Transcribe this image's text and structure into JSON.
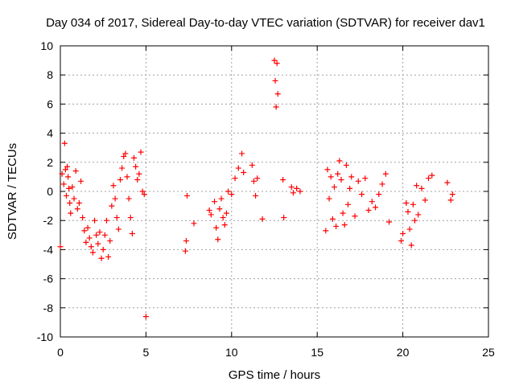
{
  "chart_data": {
    "type": "scatter",
    "title": "Day 034 of 2017, Sidereal Day-to-day VTEC variation (SDTVAR) for receiver dav1",
    "xlabel": "GPS time / hours",
    "ylabel": "SDTVAR / TECUs",
    "xlim": [
      0,
      25
    ],
    "ylim": [
      -10,
      10
    ],
    "xticks": [
      0,
      5,
      10,
      15,
      20,
      25
    ],
    "yticks": [
      -10,
      -8,
      -6,
      -4,
      -2,
      0,
      2,
      4,
      6,
      8,
      10
    ],
    "xtick_labels": [
      "0",
      "5",
      "10",
      "15",
      "20",
      "25"
    ],
    "ytick_labels": [
      "-10",
      "-8",
      "-6",
      "-4",
      "-2",
      "0",
      "2",
      "4",
      "6",
      "8",
      "10"
    ],
    "grid": true,
    "marker": "+",
    "color": "#ff0000",
    "series": [
      {
        "name": "SDTVAR",
        "x": [
          0.0,
          0.1,
          0.2,
          0.25,
          0.3,
          0.35,
          0.4,
          0.45,
          0.5,
          0.55,
          0.6,
          0.7,
          0.8,
          0.9,
          1.0,
          1.1,
          1.2,
          1.3,
          1.4,
          1.5,
          1.6,
          1.7,
          1.8,
          1.9,
          2.0,
          2.1,
          2.2,
          2.3,
          2.4,
          2.5,
          2.6,
          2.7,
          2.8,
          2.9,
          3.0,
          3.1,
          3.2,
          3.3,
          3.4,
          3.5,
          3.6,
          3.7,
          3.8,
          3.9,
          4.0,
          4.1,
          4.2,
          4.3,
          4.4,
          4.5,
          4.6,
          4.7,
          4.8,
          4.9,
          5.0,
          7.3,
          7.35,
          7.4,
          7.8,
          8.7,
          8.8,
          9.0,
          9.1,
          9.2,
          9.3,
          9.4,
          9.5,
          9.6,
          9.7,
          9.8,
          10.0,
          10.2,
          10.4,
          10.6,
          10.7,
          11.2,
          11.3,
          11.4,
          11.5,
          11.8,
          12.5,
          12.55,
          12.6,
          12.65,
          12.7,
          13.0,
          13.05,
          13.5,
          13.6,
          13.8,
          14.0,
          15.5,
          15.6,
          15.7,
          15.8,
          15.9,
          16.0,
          16.1,
          16.2,
          16.3,
          16.4,
          16.5,
          16.6,
          16.7,
          16.8,
          16.9,
          17.0,
          17.2,
          17.4,
          17.6,
          17.8,
          18.0,
          18.2,
          18.4,
          18.6,
          18.8,
          19.0,
          19.2,
          19.9,
          20.0,
          20.2,
          20.3,
          20.4,
          20.5,
          20.6,
          20.7,
          20.8,
          20.9,
          21.1,
          21.3,
          21.5,
          21.7,
          22.6,
          22.8,
          22.9
        ],
        "y": [
          -3.8,
          1.2,
          0.5,
          3.3,
          1.5,
          -0.3,
          1.7,
          1.0,
          0.2,
          -0.8,
          -1.5,
          0.3,
          -0.5,
          1.4,
          -1.2,
          -0.8,
          0.7,
          -1.8,
          -2.7,
          -3.5,
          -2.5,
          -3.2,
          -3.8,
          -4.2,
          -2.0,
          -3.0,
          -3.6,
          -2.8,
          -4.6,
          -4.0,
          -3.0,
          -2.0,
          -4.5,
          -3.4,
          -1.0,
          0.4,
          -0.5,
          -1.8,
          -2.6,
          0.8,
          1.6,
          2.4,
          2.6,
          1.0,
          -0.5,
          -1.8,
          -2.9,
          2.3,
          1.7,
          0.8,
          1.2,
          2.7,
          0.0,
          -0.2,
          -8.6,
          -4.1,
          -3.4,
          -0.3,
          -2.2,
          -1.3,
          -1.6,
          -0.7,
          -2.5,
          -3.3,
          -1.2,
          -0.5,
          -1.8,
          -2.3,
          -1.5,
          0.0,
          -0.2,
          0.9,
          1.6,
          2.6,
          1.3,
          1.8,
          0.7,
          -0.3,
          0.9,
          -1.9,
          9.0,
          7.6,
          5.8,
          8.8,
          6.7,
          0.8,
          -1.8,
          0.3,
          -0.1,
          0.2,
          0.0,
          -2.7,
          1.5,
          -0.5,
          1.0,
          -1.9,
          0.3,
          -2.4,
          1.2,
          2.1,
          0.8,
          -1.5,
          -2.3,
          1.8,
          -0.9,
          0.2,
          1.0,
          -1.7,
          0.7,
          -0.2,
          0.9,
          -1.3,
          -0.7,
          -1.1,
          -0.2,
          0.5,
          1.2,
          -2.1,
          -3.4,
          -2.9,
          -0.8,
          -1.4,
          -2.6,
          -3.7,
          -0.9,
          -2.0,
          0.4,
          -1.6,
          0.2,
          -0.6,
          0.9,
          1.1,
          0.6,
          -0.6,
          -0.2
        ]
      }
    ]
  }
}
